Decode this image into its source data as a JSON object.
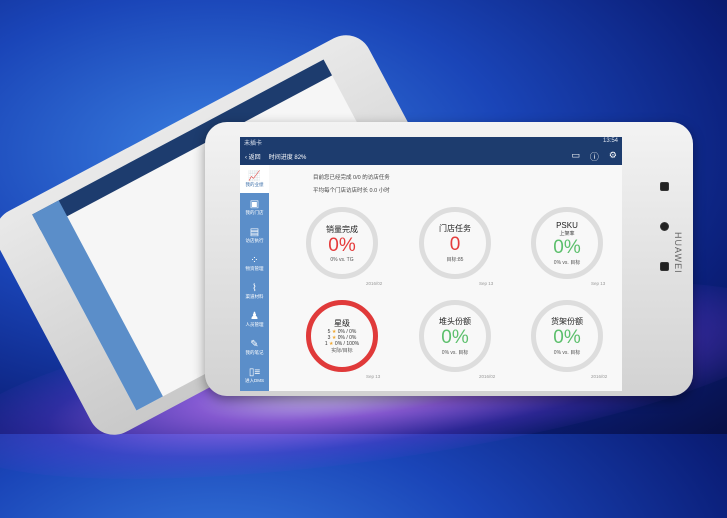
{
  "colors": {
    "header": "#1d3c6e",
    "sidebar": "#5b8ec9",
    "red": "#e53b3b",
    "green": "#5cbf6c"
  },
  "device": {
    "brand": "HUAWEI"
  },
  "status": {
    "carrier": "未插卡",
    "time": "13:54"
  },
  "nav": {
    "back": "返回",
    "progress": "时间进度 82%",
    "icons": [
      "message-icon",
      "help-icon",
      "gear-icon"
    ]
  },
  "sidebar": [
    {
      "label": "我的业绩",
      "icon": "chart-icon"
    },
    {
      "label": "我的门店",
      "icon": "store-icon"
    },
    {
      "label": "访店执行",
      "icon": "clipboard-icon"
    },
    {
      "label": "物资管理",
      "icon": "grid-icon"
    },
    {
      "label": "渠道材料",
      "icon": "paperclip-icon"
    },
    {
      "label": "人员管理",
      "icon": "people-icon"
    },
    {
      "label": "我的笔记",
      "icon": "note-icon"
    },
    {
      "label": "进入DMS",
      "icon": "dms-icon"
    }
  ],
  "summary": {
    "line1": "目前您已经完成 0/0 的访店任务",
    "line2": "平均每个门店访店时长 0.0 小时"
  },
  "cards": [
    {
      "title": "销量完成",
      "value": "0%",
      "foot": "0% vs. TG",
      "date": "2016/02"
    },
    {
      "title": "门店任务",
      "value": "0",
      "foot": "目标:85",
      "date": "Sep 13"
    },
    {
      "title": "PSKU",
      "sub": "上架率",
      "value": "0%",
      "foot": "0% vs. 目标",
      "date": "Sep 13"
    },
    {
      "title": "星级",
      "rows": [
        {
          "n": "5",
          "v": "0% / 0%"
        },
        {
          "n": "3",
          "v": "0% / 0%"
        },
        {
          "n": "1",
          "v": "0% / 100%"
        }
      ],
      "foot": "实际/目标",
      "date": "Sep 13"
    },
    {
      "title": "堆头份额",
      "value": "0%",
      "foot": "0% vs. 目标",
      "date": "2016/02"
    },
    {
      "title": "货架份额",
      "value": "0%",
      "foot": "0% vs. 目标",
      "date": "2016/02"
    }
  ]
}
